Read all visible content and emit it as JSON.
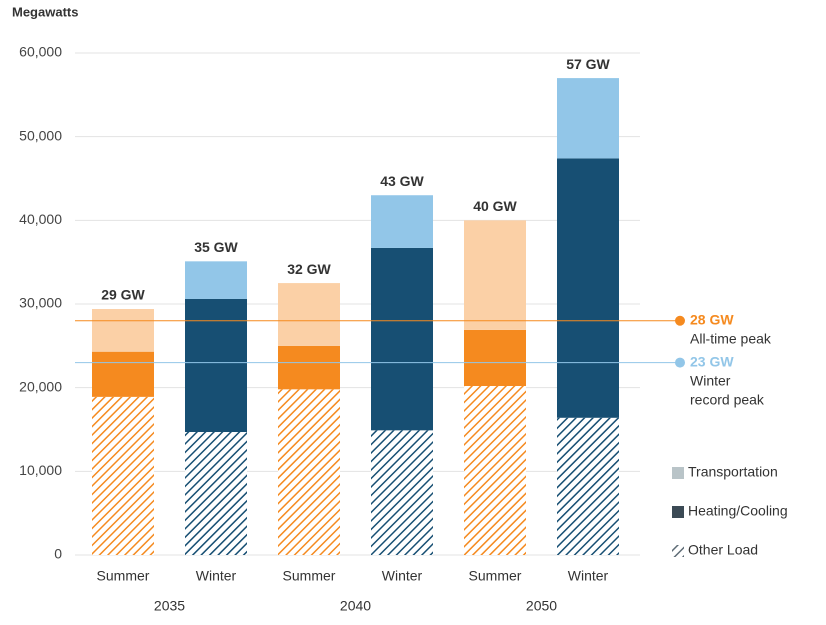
{
  "chart_data": {
    "type": "stacked-bar",
    "y_axis_title": "Megawatts",
    "categories": [
      "Summer",
      "Winter",
      "Summer",
      "Winter",
      "Summer",
      "Winter"
    ],
    "groups": [
      "2035",
      "2040",
      "2050"
    ],
    "ylim": [
      0,
      60000
    ],
    "yticks": [
      0,
      {
        "value": 10000,
        "label": "10,000"
      },
      {
        "value": 20000,
        "label": "20,000"
      },
      {
        "value": 30000,
        "label": "30,000"
      },
      {
        "value": 40000,
        "label": "40,000"
      },
      {
        "value": 50000,
        "label": "50,000"
      },
      {
        "value": 60000,
        "label": "60,000"
      }
    ],
    "grid": true,
    "series": [
      {
        "name": "Other Load",
        "color": "#5d6b75",
        "hatched": true,
        "bar_colors": [
          "#f58a1f",
          "#174f73",
          "#f58a1f",
          "#174f73",
          "#f58a1f",
          "#174f73"
        ],
        "values": [
          18900,
          14700,
          19800,
          14900,
          20200,
          16400
        ]
      },
      {
        "name": "Heating/Cooling",
        "color": "#3b4a55",
        "hatched": false,
        "bar_colors": [
          "#f58a1f",
          "#174f73",
          "#f58a1f",
          "#174f73",
          "#f58a1f",
          "#174f73"
        ],
        "values": [
          5400,
          15900,
          5200,
          21800,
          6700,
          31000
        ]
      },
      {
        "name": "Transportation",
        "color": "#b9c4c8",
        "hatched": false,
        "bar_colors": [
          "#fbd0a6",
          "#92c6e8",
          "#fbd0a6",
          "#92c6e8",
          "#fbd0a6",
          "#92c6e8"
        ],
        "values": [
          5100,
          4500,
          7500,
          6300,
          13100,
          9600
        ]
      }
    ],
    "total_labels": [
      "29 GW",
      "35 GW",
      "32 GW",
      "43 GW",
      "40 GW",
      "57 GW"
    ],
    "reference_lines": [
      {
        "value": 28000,
        "label": "28 GW",
        "text": [
          "All-time peak"
        ],
        "color": "#f58a1f"
      },
      {
        "value": 23000,
        "label": "23 GW",
        "text": [
          "Winter",
          "record peak"
        ],
        "color": "#92c6e8"
      }
    ]
  }
}
